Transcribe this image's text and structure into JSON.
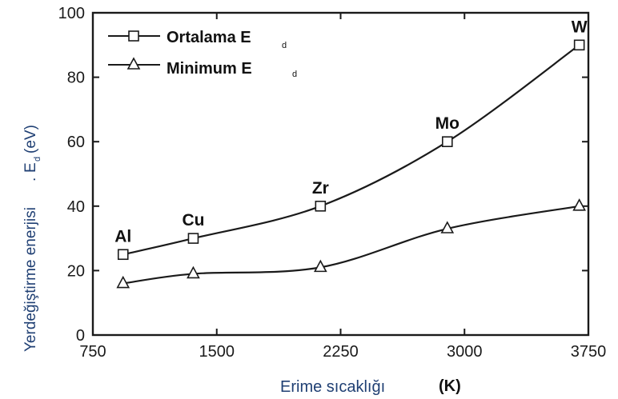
{
  "chart_data": {
    "type": "line",
    "x_ticks": [
      750,
      1500,
      2250,
      3000,
      3750
    ],
    "y_ticks": [
      0,
      20,
      40,
      60,
      80,
      100
    ],
    "xlim": [
      750,
      3750
    ],
    "ylim": [
      0,
      100
    ],
    "xlabel": "Erime sıcaklığı",
    "xunit": "(K)",
    "ylabel_main": "Yerdeğiştirme enerjisi",
    "ylabel_sym": "E",
    "ylabel_sub": "d",
    "ylabel_unit": "(eV)",
    "legend_sub": "d",
    "legend_position": "top-left",
    "series": [
      {
        "name": "Ortalama E",
        "marker": "square",
        "x": [
          933,
          1358,
          2128,
          2896,
          3695
        ],
        "y": [
          25,
          30,
          40,
          60,
          90
        ]
      },
      {
        "name": "Minimum  E",
        "marker": "triangle",
        "x": [
          933,
          1358,
          2128,
          2896,
          3695
        ],
        "y": [
          16,
          19,
          21,
          33,
          40
        ]
      }
    ],
    "point_labels": [
      "Al",
      "Cu",
      "Zr",
      "Mo",
      "W"
    ]
  }
}
